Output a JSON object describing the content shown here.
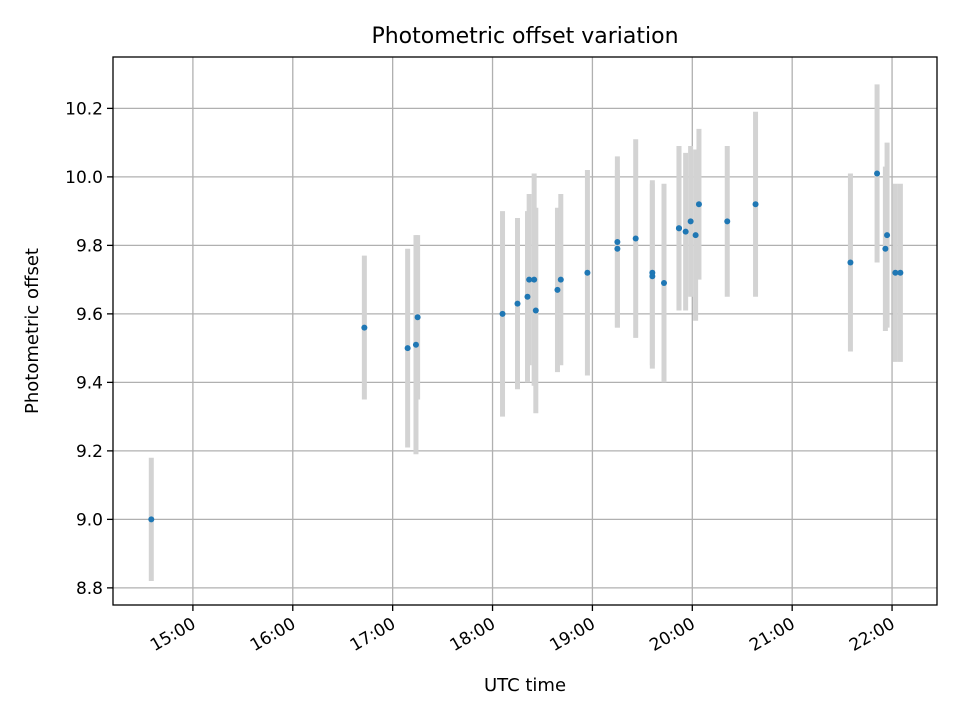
{
  "chart_data": {
    "type": "scatter",
    "title": "Photometric offset variation",
    "xlabel": "UTC time",
    "ylabel": "Photometric offset",
    "grid": true,
    "xaxis": {
      "type": "time",
      "range": [
        "14:12",
        "22:27"
      ],
      "ticks": [
        "15:00",
        "16:00",
        "17:00",
        "18:00",
        "19:00",
        "20:00",
        "21:00",
        "22:00"
      ]
    },
    "yaxis": {
      "range": [
        8.75,
        10.35
      ],
      "ticks": [
        "8.8",
        "9.0",
        "9.2",
        "9.4",
        "9.6",
        "9.8",
        "10.0",
        "10.2"
      ]
    },
    "colors": {
      "marker": "#1f77b4",
      "errorbar": "#d3d3d3"
    },
    "series": [
      {
        "points": [
          {
            "t": "14:35",
            "y": 9.0,
            "err": 0.18
          },
          {
            "t": "16:43",
            "y": 9.56,
            "err": 0.21
          },
          {
            "t": "17:09",
            "y": 9.5,
            "err": 0.29
          },
          {
            "t": "17:14",
            "y": 9.51,
            "err": 0.32
          },
          {
            "t": "17:15",
            "y": 9.59,
            "err": 0.24
          },
          {
            "t": "18:06",
            "y": 9.6,
            "err": 0.3
          },
          {
            "t": "18:15",
            "y": 9.63,
            "err": 0.25
          },
          {
            "t": "18:21",
            "y": 9.65,
            "err": 0.25
          },
          {
            "t": "18:22",
            "y": 9.7,
            "err": 0.25
          },
          {
            "t": "18:25",
            "y": 9.7,
            "err": 0.31
          },
          {
            "t": "18:26",
            "y": 9.61,
            "err": 0.3
          },
          {
            "t": "18:39",
            "y": 9.67,
            "err": 0.24
          },
          {
            "t": "18:41",
            "y": 9.7,
            "err": 0.25
          },
          {
            "t": "18:57",
            "y": 9.72,
            "err": 0.3
          },
          {
            "t": "19:15",
            "y": 9.79,
            "err": 0.23
          },
          {
            "t": "19:15",
            "y": 9.81,
            "err": 0.25
          },
          {
            "t": "19:26",
            "y": 9.82,
            "err": 0.29
          },
          {
            "t": "19:36",
            "y": 9.72,
            "err": 0.27
          },
          {
            "t": "19:36",
            "y": 9.71,
            "err": 0.27
          },
          {
            "t": "19:43",
            "y": 9.69,
            "err": 0.29
          },
          {
            "t": "19:52",
            "y": 9.85,
            "err": 0.24
          },
          {
            "t": "19:52",
            "y": 9.85,
            "err": 0.24
          },
          {
            "t": "19:56",
            "y": 9.84,
            "err": 0.23
          },
          {
            "t": "19:59",
            "y": 9.87,
            "err": 0.22
          },
          {
            "t": "20:02",
            "y": 9.83,
            "err": 0.25
          },
          {
            "t": "20:04",
            "y": 9.92,
            "err": 0.22
          },
          {
            "t": "20:21",
            "y": 9.87,
            "err": 0.22
          },
          {
            "t": "20:38",
            "y": 9.92,
            "err": 0.27
          },
          {
            "t": "21:35",
            "y": 9.75,
            "err": 0.26
          },
          {
            "t": "21:51",
            "y": 10.01,
            "err": 0.26
          },
          {
            "t": "21:56",
            "y": 9.79,
            "err": 0.24
          },
          {
            "t": "21:57",
            "y": 9.83,
            "err": 0.27
          },
          {
            "t": "22:02",
            "y": 9.72,
            "err": 0.26
          },
          {
            "t": "22:05",
            "y": 9.72,
            "err": 0.26
          }
        ]
      }
    ]
  }
}
